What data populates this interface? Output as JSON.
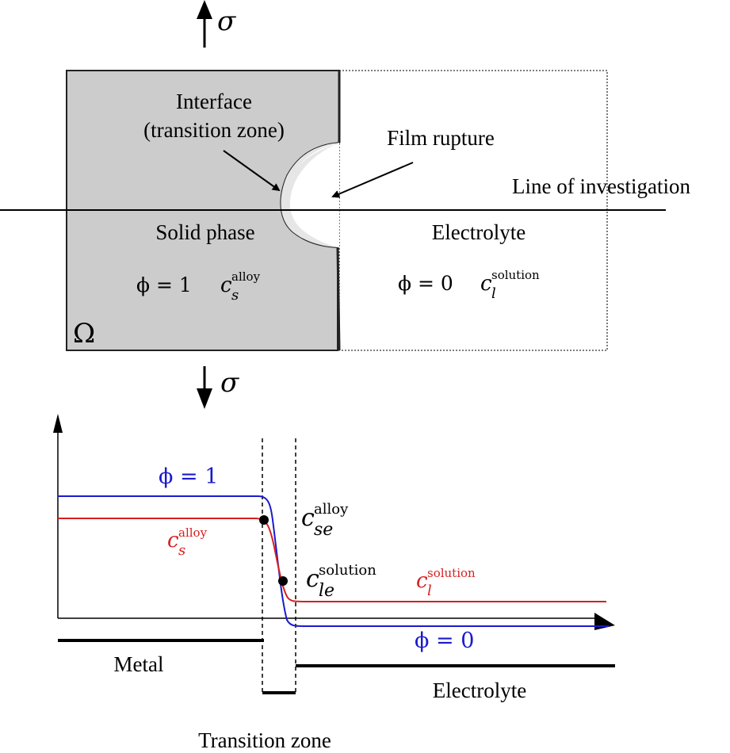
{
  "colors": {
    "solid_fill": "#cccccc",
    "interface_fill": "#e6e6e6",
    "phi_curve": "#1a1acc",
    "concentration_curve": "#d62020",
    "ink": "#000000"
  },
  "top": {
    "stress_symbol_top": "σ",
    "stress_symbol_bottom": "σ",
    "interface_label_line1": "Interface",
    "interface_label_line2": "(transition zone)",
    "film_rupture_label": "Film rupture",
    "line_label": "Line of investigation",
    "solid_label": "Solid phase",
    "electrolyte_label": "Electrolyte",
    "solid_phi": "ϕ = 1",
    "solid_c_base": "c",
    "solid_c_sub": "s",
    "solid_c_sup": "alloy",
    "liquid_phi": "ϕ = 0",
    "liquid_c_base": "c",
    "liquid_c_sub": "l",
    "liquid_c_sup": "solution",
    "domain_symbol": "Ω"
  },
  "profile": {
    "phi_high_label": "ϕ = 1",
    "phi_low_label": "ϕ = 0",
    "cs_base": "c",
    "cs_sub": "s",
    "cs_sup": "alloy",
    "cl_base": "c",
    "cl_sub": "l",
    "cl_sup": "solution",
    "cse_base": "c",
    "cse_sub": "se",
    "cse_sup": "alloy",
    "cle_base": "c",
    "cle_sub": "le",
    "cle_sup": "solution",
    "metal_label": "Metal",
    "electrolyte_label": "Electrolyte",
    "transition_label": "Transition zone"
  }
}
